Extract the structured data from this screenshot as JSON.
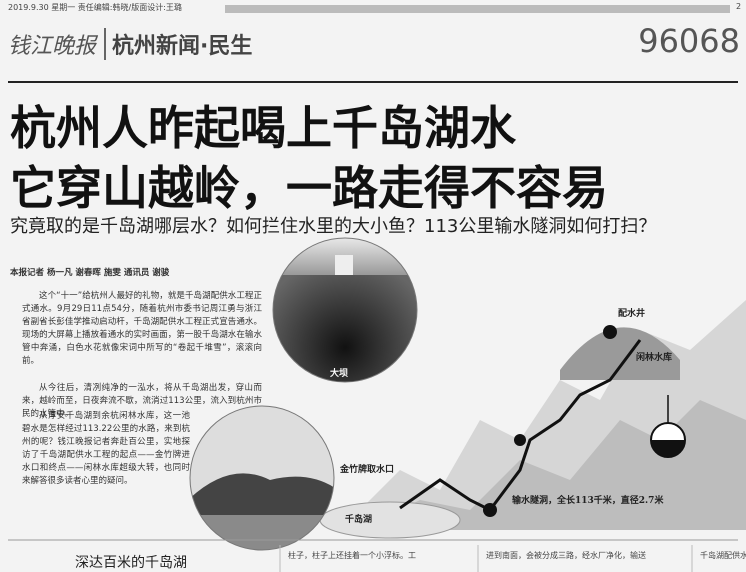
{
  "header": {
    "dateline": "2019.9.30 星期一 责任编辑:韩晓/版面设计:王璐",
    "page_number": "2",
    "paper_name": "钱江晚报",
    "section": "杭州新闻·民生",
    "hotline": "96068"
  },
  "article": {
    "headline": [
      "杭州人昨起喝上千岛湖水",
      "它穿山越岭，一路走得不容易"
    ],
    "subheadline": "究竟取的是千岛湖哪层水？如何拦住水里的大小鱼？113公里输水隧洞如何打扫？",
    "byline": "本报记者 杨一凡 谢春晖 施雯 通讯员 谢骏",
    "paragraphs": [
      "这个“十一”给杭州人最好的礼物，就是千岛湖配供水工程正式通水。9月29日11点54分，随着杭州市委书记周江勇与浙江省副省长彭佳学推动启动杆，千岛湖配供水工程正式宣告通水。现场的大屏幕上播放着通水的实时画面，第一股千岛湖水在输水管中奔涌，白色水花就像宋词中所写的“卷起千堆雪”，滚滚向前。",
      "从今往后，清冽纯净的一泓水，将从千岛湖出发，穿山而来，越岭而至，日夜奔流不歇，流淌过113公里，流入到杭州市民的水管中。",
      "从淳安千岛湖到余杭闲林水库，这一池碧水是怎样经过113.22公里的水路，来到杭州的呢？钱江晚报记者奔赴百公里，实地探访了千岛湖配供水工程的起点——金竹牌进水口和终点——闲林水库超级大转，也同时来解答很多读者心里的疑问。"
    ]
  },
  "diagram": {
    "labels": {
      "dam": "大坝",
      "intake": "金竹牌取水口",
      "lake": "千岛湖",
      "shaft": "配水井",
      "reservoir": "闲林水库",
      "tunnel": "输水隧洞，全长113千米，直径2.7米"
    }
  },
  "footer": {
    "section_title": "深达百米的千岛湖",
    "column_snippets": [
      "柱子，柱子上还挂着一个小浮标。工",
      "进到南面，会被分成三路，经水厂净化，输送",
      "千岛湖配供水"
    ]
  }
}
